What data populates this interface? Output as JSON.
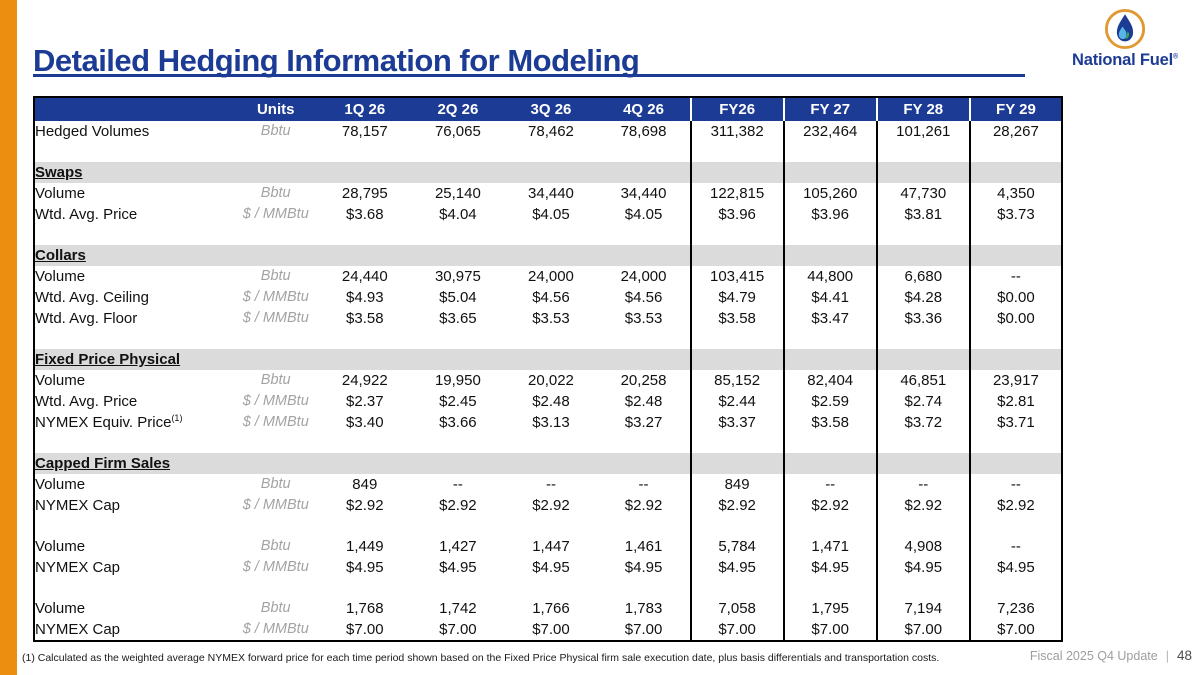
{
  "slide": {
    "title": "Detailed Hedging Information for Modeling",
    "footnote": "(1) Calculated as the weighted average NYMEX forward price for each time period shown based on the Fixed Price Physical firm sale execution date, plus basis differentials and transportation costs.",
    "footer_label": "Fiscal 2025 Q4 Update",
    "footer_separator": "|",
    "page_number": "48"
  },
  "logo": {
    "name": "National Fuel",
    "registered": "®"
  },
  "colors": {
    "brand_blue": "#1c3b94",
    "accent_orange": "#EC8F10",
    "section_gray": "#dbdbdb",
    "units_gray": "#a3a3a3",
    "logo_ring_orange": "#E19A33",
    "logo_drop_dark_blue": "#1c3b94",
    "logo_drop_light_blue": "#56b7e6"
  },
  "table": {
    "columns": [
      "",
      "Units",
      "1Q 26",
      "2Q 26",
      "3Q 26",
      "4Q 26",
      "FY26",
      "FY 27",
      "FY 28",
      "FY 29"
    ],
    "rows": [
      {
        "type": "data",
        "label": "Hedged Volumes",
        "units": "Bbtu",
        "values": [
          "78,157",
          "76,065",
          "78,462",
          "78,698",
          "311,382",
          "232,464",
          "101,261",
          "28,267"
        ]
      },
      {
        "type": "spacer"
      },
      {
        "type": "section",
        "label": "Swaps"
      },
      {
        "type": "data",
        "label": "Volume",
        "units": "Bbtu",
        "values": [
          "28,795",
          "25,140",
          "34,440",
          "34,440",
          "122,815",
          "105,260",
          "47,730",
          "4,350"
        ]
      },
      {
        "type": "data",
        "label": "Wtd. Avg. Price",
        "units": "$ / MMBtu",
        "values": [
          "$3.68",
          "$4.04",
          "$4.05",
          "$4.05",
          "$3.96",
          "$3.96",
          "$3.81",
          "$3.73"
        ]
      },
      {
        "type": "spacer"
      },
      {
        "type": "section",
        "label": "Collars"
      },
      {
        "type": "data",
        "label": "Volume",
        "units": "Bbtu",
        "values": [
          "24,440",
          "30,975",
          "24,000",
          "24,000",
          "103,415",
          "44,800",
          "6,680",
          "--"
        ]
      },
      {
        "type": "data",
        "label": "Wtd. Avg. Ceiling",
        "units": "$ / MMBtu",
        "values": [
          "$4.93",
          "$5.04",
          "$4.56",
          "$4.56",
          "$4.79",
          "$4.41",
          "$4.28",
          "$0.00"
        ]
      },
      {
        "type": "data",
        "label": "Wtd. Avg. Floor",
        "units": "$ / MMBtu",
        "values": [
          "$3.58",
          "$3.65",
          "$3.53",
          "$3.53",
          "$3.58",
          "$3.47",
          "$3.36",
          "$0.00"
        ]
      },
      {
        "type": "spacer"
      },
      {
        "type": "section",
        "label": "Fixed Price Physical"
      },
      {
        "type": "data",
        "label": "Volume",
        "units": "Bbtu",
        "values": [
          "24,922",
          "19,950",
          "20,022",
          "20,258",
          "85,152",
          "82,404",
          "46,851",
          "23,917"
        ]
      },
      {
        "type": "data",
        "label": "Wtd. Avg. Price",
        "units": "$ / MMBtu",
        "values": [
          "$2.37",
          "$2.45",
          "$2.48",
          "$2.48",
          "$2.44",
          "$2.59",
          "$2.74",
          "$2.81"
        ]
      },
      {
        "type": "data",
        "label": "NYMEX Equiv. Price",
        "label_sup": "(1)",
        "units": "$ / MMBtu",
        "values": [
          "$3.40",
          "$3.66",
          "$3.13",
          "$3.27",
          "$3.37",
          "$3.58",
          "$3.72",
          "$3.71"
        ]
      },
      {
        "type": "spacer"
      },
      {
        "type": "section",
        "label": "Capped Firm Sales"
      },
      {
        "type": "data",
        "label": "Volume",
        "units": "Bbtu",
        "values": [
          "849",
          "--",
          "--",
          "--",
          "849",
          "--",
          "--",
          "--"
        ]
      },
      {
        "type": "data",
        "label": "NYMEX Cap",
        "units": "$ / MMBtu",
        "values": [
          "$2.92",
          "$2.92",
          "$2.92",
          "$2.92",
          "$2.92",
          "$2.92",
          "$2.92",
          "$2.92"
        ]
      },
      {
        "type": "spacer"
      },
      {
        "type": "data",
        "label": "Volume",
        "units": "Bbtu",
        "values": [
          "1,449",
          "1,427",
          "1,447",
          "1,461",
          "5,784",
          "1,471",
          "4,908",
          "--"
        ]
      },
      {
        "type": "data",
        "label": "NYMEX Cap",
        "units": "$ / MMBtu",
        "values": [
          "$4.95",
          "$4.95",
          "$4.95",
          "$4.95",
          "$4.95",
          "$4.95",
          "$4.95",
          "$4.95"
        ]
      },
      {
        "type": "spacer"
      },
      {
        "type": "data",
        "label": "Volume",
        "units": "Bbtu",
        "values": [
          "1,768",
          "1,742",
          "1,766",
          "1,783",
          "7,058",
          "1,795",
          "7,194",
          "7,236"
        ]
      },
      {
        "type": "data",
        "label": "NYMEX Cap",
        "units": "$ / MMBtu",
        "values": [
          "$7.00",
          "$7.00",
          "$7.00",
          "$7.00",
          "$7.00",
          "$7.00",
          "$7.00",
          "$7.00"
        ]
      }
    ]
  }
}
